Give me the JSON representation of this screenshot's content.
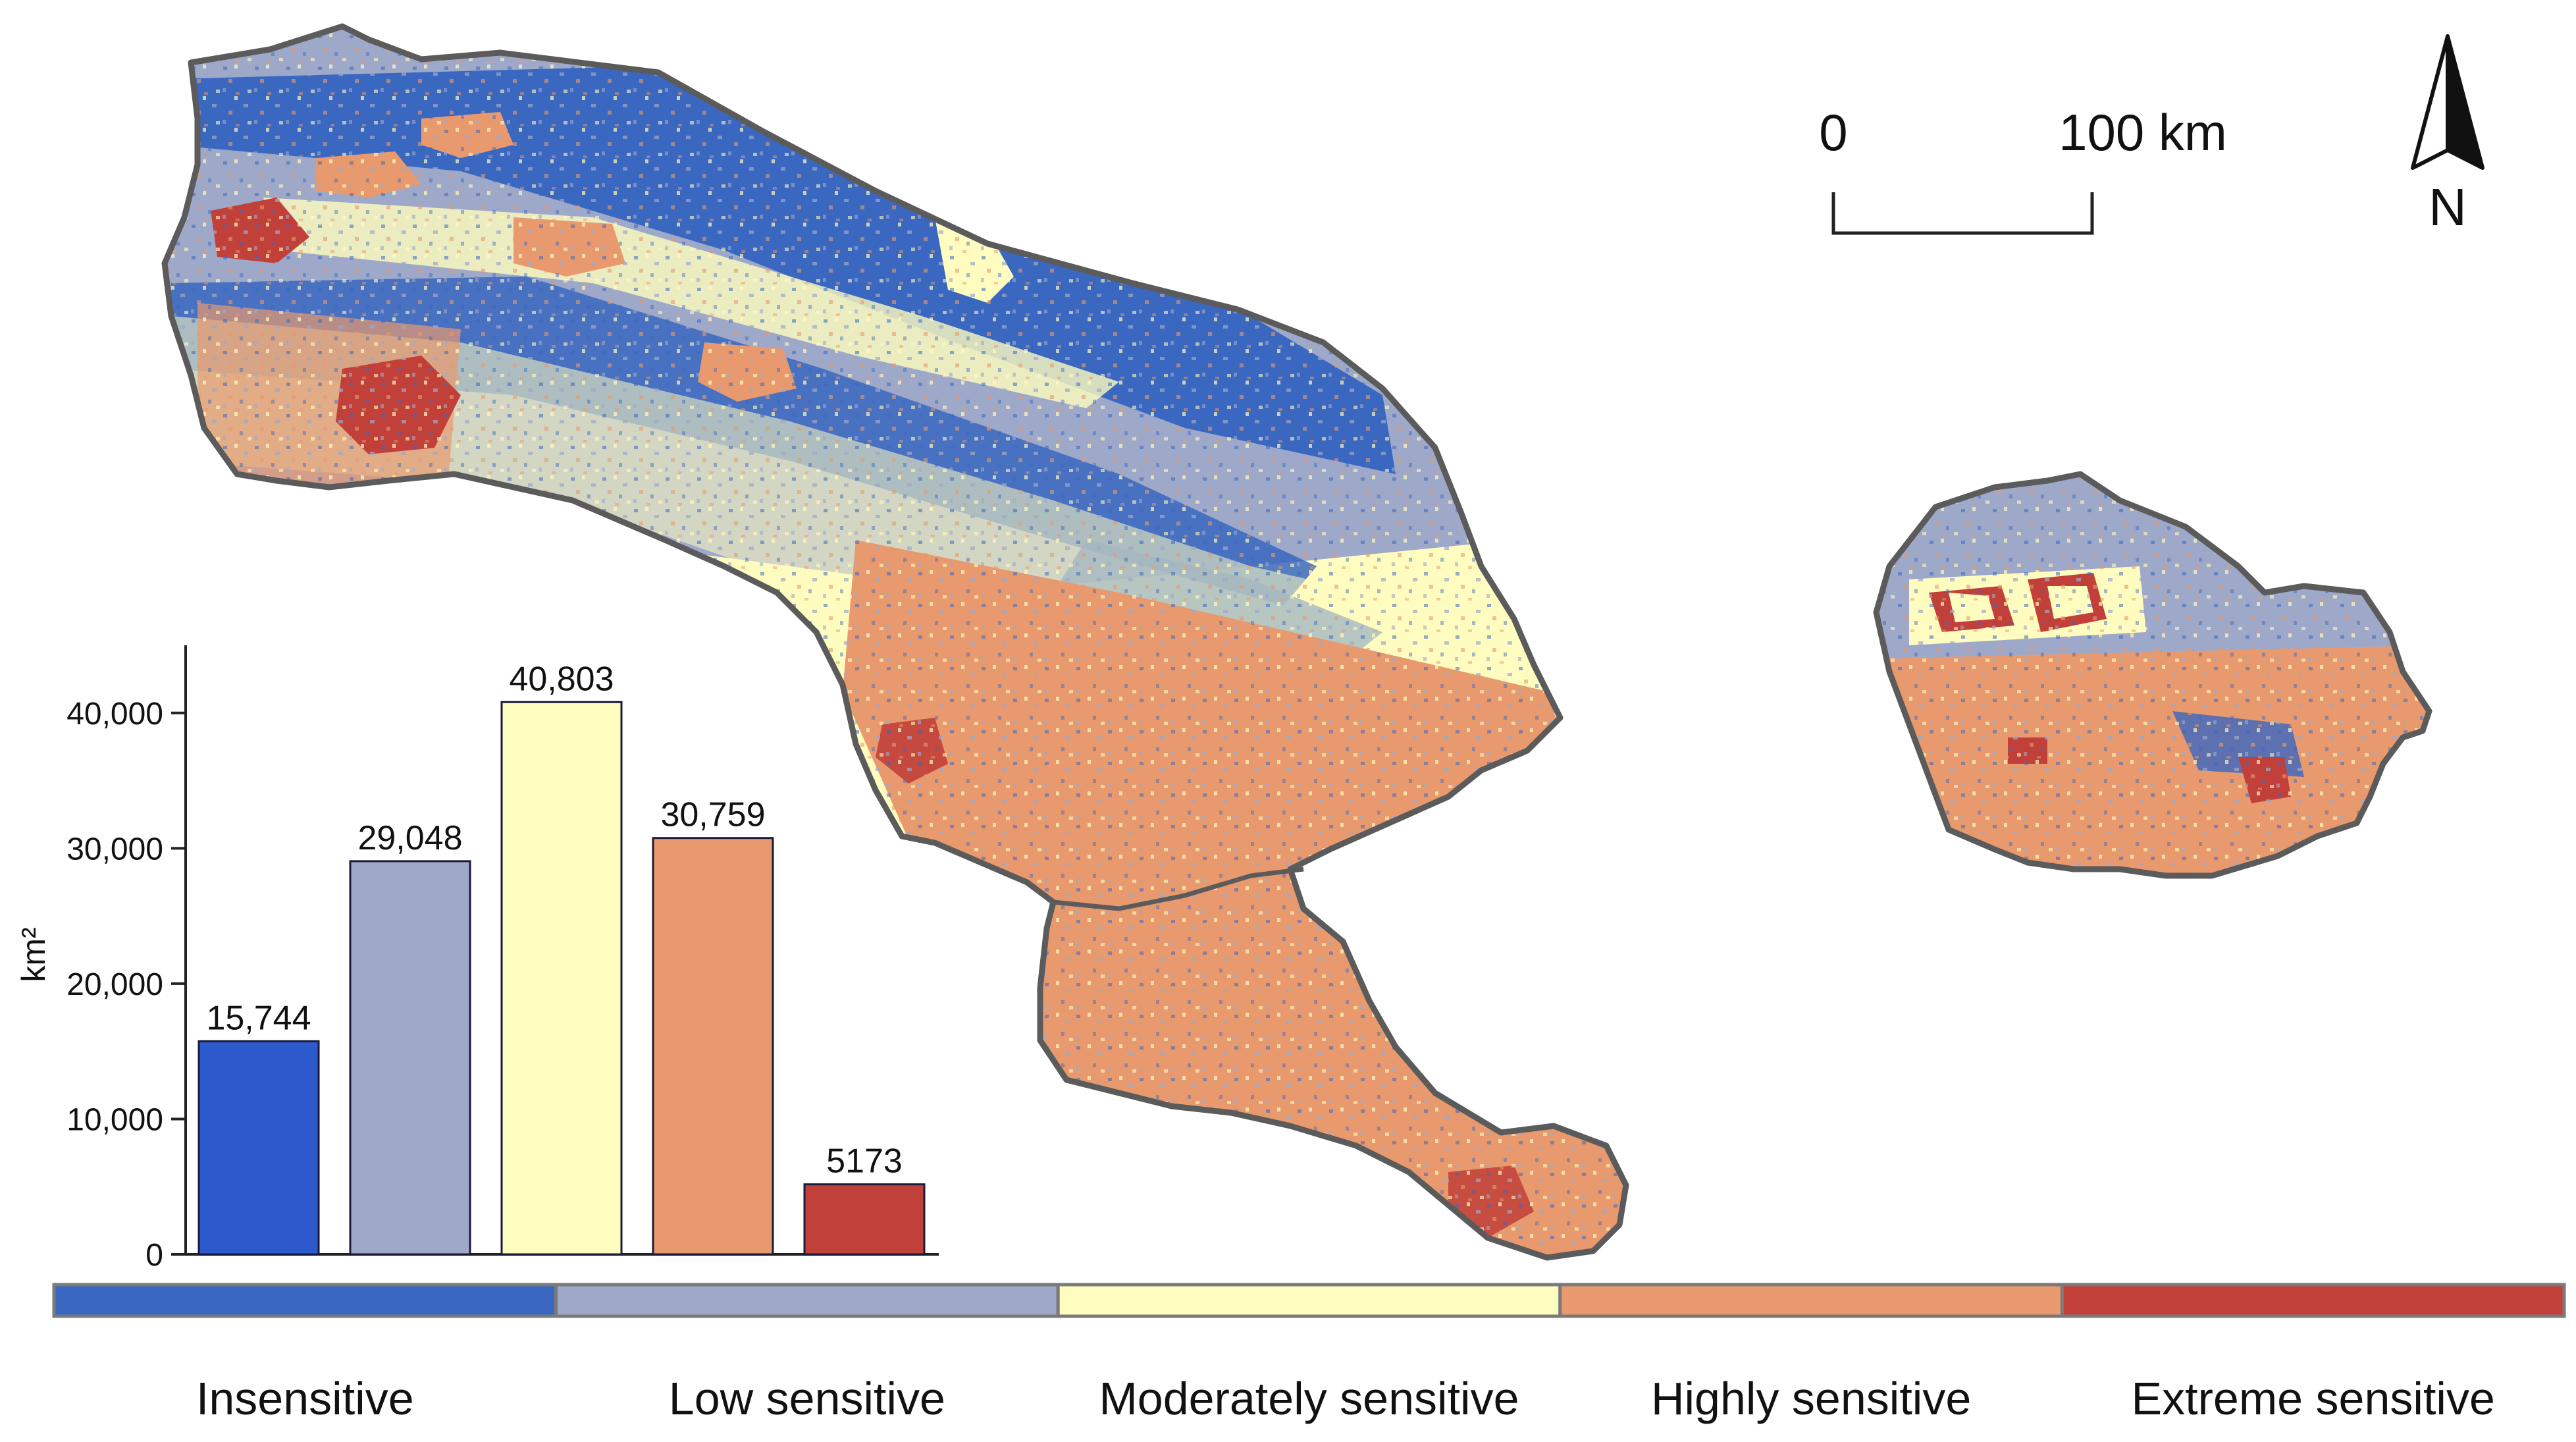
{
  "map": {
    "scale_bar": {
      "start_label": "0",
      "end_label": "100 km"
    },
    "north_arrow": {
      "label": "N",
      "icon": "north-arrow-icon"
    }
  },
  "legend": {
    "items": [
      {
        "label": "Insensitive",
        "color": "#3a67c0"
      },
      {
        "label": "Low sensitive",
        "color": "#9ea8c8"
      },
      {
        "label": "Moderately sensitive",
        "color": "#fffcbf"
      },
      {
        "label": "Highly sensitive",
        "color": "#e89a6e"
      },
      {
        "label": "Extreme sensitive",
        "color": "#c2403a"
      }
    ]
  },
  "chart_data": {
    "type": "bar",
    "ylabel": "km²",
    "ylim": [
      0,
      45000
    ],
    "yticks": [
      {
        "value": 0,
        "label": "0"
      },
      {
        "value": 10000,
        "label": "10,000"
      },
      {
        "value": 20000,
        "label": "20,000"
      },
      {
        "value": 30000,
        "label": "30,000"
      },
      {
        "value": 40000,
        "label": "40,000"
      }
    ],
    "values": [
      15744,
      29048,
      40803,
      30759,
      5173
    ],
    "value_labels": [
      "15,744",
      "29,048",
      "40,803",
      "30,759",
      "5173"
    ],
    "colors": [
      "#2c5acc",
      "#9ea8c8",
      "#fffcbf",
      "#e89a6e",
      "#c2403a"
    ]
  }
}
